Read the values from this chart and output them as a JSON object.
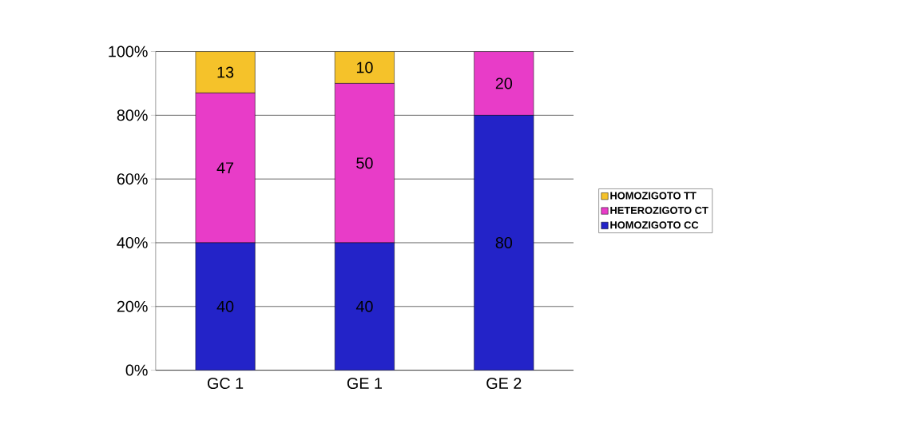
{
  "chart_data": {
    "type": "bar",
    "stacked": true,
    "categories": [
      "GC 1",
      "GE 1",
      "GE 2"
    ],
    "series": [
      {
        "name": "HOMOZIGOTO CC",
        "color": "#2323c8",
        "values": [
          40,
          40,
          80
        ]
      },
      {
        "name": "HETEROZIGOTO CT",
        "color": "#e83cc8",
        "values": [
          47,
          50,
          20
        ]
      },
      {
        "name": "HOMOZIGOTO TT",
        "color": "#f5c22a",
        "values": [
          13,
          10,
          null
        ]
      }
    ],
    "ylim": [
      0,
      100
    ],
    "yticks": [
      {
        "value": 0,
        "label": "0%"
      },
      {
        "value": 20,
        "label": "20%"
      },
      {
        "value": 40,
        "label": "40%"
      },
      {
        "value": 60,
        "label": "60%"
      },
      {
        "value": 80,
        "label": "80%"
      },
      {
        "value": 100,
        "label": "100%"
      }
    ],
    "grid": "y",
    "legend": "right",
    "data_labels": true
  }
}
